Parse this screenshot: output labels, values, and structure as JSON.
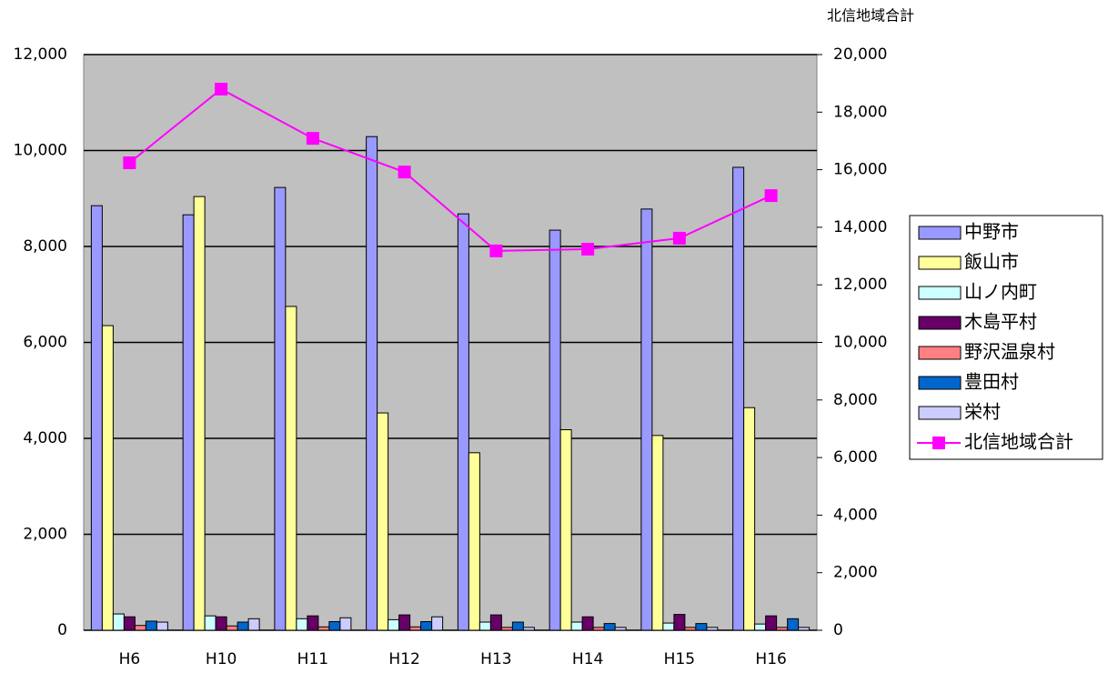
{
  "chart_data": {
    "type": "bar",
    "y2_title": "北信地域合計",
    "categories": [
      "H6",
      "H10",
      "H11",
      "H12",
      "H13",
      "H14",
      "H15",
      "H16"
    ],
    "series": [
      {
        "name": "中野市",
        "color": "#9999ff",
        "values": [
          8850,
          8660,
          9230,
          10290,
          8680,
          8340,
          8780,
          9650
        ]
      },
      {
        "name": "飯山市",
        "color": "#ffff99",
        "values": [
          6350,
          9040,
          6750,
          4530,
          3700,
          4180,
          4060,
          4640
        ]
      },
      {
        "name": "山ノ内町",
        "color": "#ccffff",
        "values": [
          340,
          300,
          240,
          220,
          170,
          170,
          150,
          130
        ]
      },
      {
        "name": "木島平村",
        "color": "#660066",
        "values": [
          280,
          280,
          300,
          320,
          320,
          280,
          330,
          300
        ]
      },
      {
        "name": "野沢温泉村",
        "color": "#ff8080",
        "values": [
          100,
          90,
          70,
          70,
          60,
          60,
          60,
          60
        ]
      },
      {
        "name": "豊田村",
        "color": "#0066cc",
        "values": [
          190,
          170,
          180,
          180,
          170,
          140,
          140,
          240
        ]
      },
      {
        "name": "栄村",
        "color": "#ccccff",
        "values": [
          170,
          240,
          260,
          280,
          60,
          60,
          60,
          60
        ]
      },
      {
        "name": "北信地域合計",
        "color": "#ff00ff",
        "type": "line",
        "axis": "y2",
        "values": [
          16240,
          18800,
          17090,
          15920,
          13180,
          13240,
          13620,
          15100
        ]
      }
    ],
    "ylim": [
      0,
      12000
    ],
    "yticks": [
      0,
      {
        "value": 2000,
        "label": "2,000"
      },
      {
        "value": 4000,
        "label": "4,000"
      },
      {
        "value": 6000,
        "label": "6,000"
      },
      {
        "value": 8000,
        "label": "8,000"
      },
      {
        "value": 10000,
        "label": "10,000"
      },
      {
        "value": 12000,
        "label": "12,000"
      }
    ],
    "y2lim": [
      0,
      20000
    ],
    "y2ticks": [
      0,
      {
        "value": 2000,
        "label": "2,000"
      },
      {
        "value": 4000,
        "label": "4,000"
      },
      {
        "value": 6000,
        "label": "6,000"
      },
      {
        "value": 8000,
        "label": "8,000"
      },
      {
        "value": 10000,
        "label": "10,000"
      },
      {
        "value": 12000,
        "label": "12,000"
      },
      {
        "value": 14000,
        "label": "14,000"
      },
      {
        "value": 16000,
        "label": "16,000"
      },
      {
        "value": 18000,
        "label": "18,000"
      },
      {
        "value": 20000,
        "label": "20,000"
      }
    ],
    "grid": true,
    "legend": "right",
    "plot_background": "#c0c0c0"
  }
}
